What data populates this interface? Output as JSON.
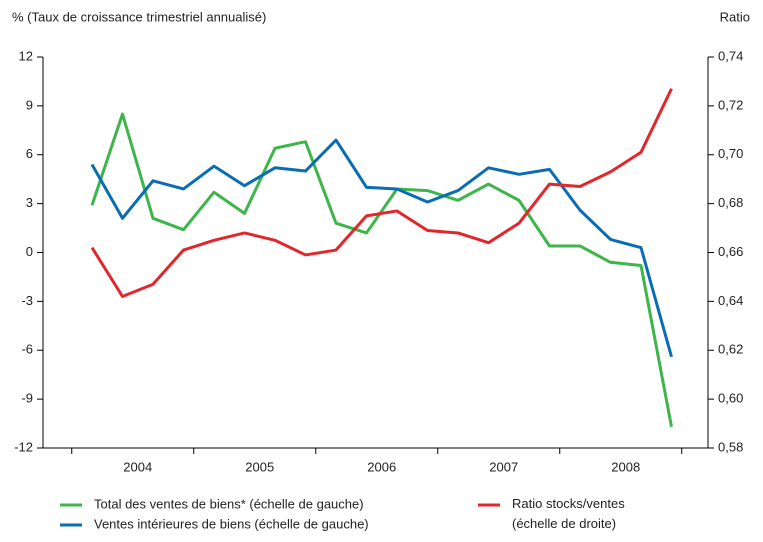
{
  "chart_data": {
    "type": "line",
    "y_axis_label": "% (Taux de croissance trimestriel annualisé)",
    "y2_axis_label": "Ratio",
    "year_labels": [
      "2004",
      "2005",
      "2006",
      "2007",
      "2008"
    ],
    "points_per_year": 4,
    "ylim": [
      -12,
      12
    ],
    "yticks": [
      -12,
      -9,
      -6,
      -3,
      0,
      3,
      6,
      9,
      12
    ],
    "y2lim": [
      0.58,
      0.74
    ],
    "y2ticks": [
      {
        "value": 0.58,
        "label": "0,58"
      },
      {
        "value": 0.6,
        "label": "0,60"
      },
      {
        "value": 0.62,
        "label": "0,62"
      },
      {
        "value": 0.64,
        "label": "0,64"
      },
      {
        "value": 0.66,
        "label": "0,66"
      },
      {
        "value": 0.68,
        "label": "0,68"
      },
      {
        "value": 0.7,
        "label": "0,70"
      },
      {
        "value": 0.72,
        "label": "0,72"
      },
      {
        "value": 0.74,
        "label": "0,74"
      }
    ],
    "series": [
      {
        "name": "Total des ventes de biens* (échelle de gauche)",
        "color": "#3db54a",
        "values": [
          2.9,
          8.5,
          2.1,
          1.4,
          3.7,
          2.4,
          6.4,
          6.8,
          1.8,
          1.2,
          3.9,
          3.8,
          3.2,
          4.2,
          3.2,
          0.4,
          0.4,
          -0.6,
          -0.8,
          -10.7
        ]
      },
      {
        "name": "Ventes intérieures de biens (échelle de gauche)",
        "color": "#0a6db3",
        "values": [
          5.4,
          2.1,
          4.4,
          3.9,
          5.3,
          4.1,
          5.2,
          5.0,
          6.9,
          4.0,
          3.9,
          3.1,
          3.8,
          5.2,
          4.8,
          5.1,
          2.6,
          0.8,
          0.3,
          -6.4
        ]
      },
      {
        "name": "Ratio stocks/ventes (échelle de droite)",
        "color": "#e3262b",
        "axis": "y2",
        "values": [
          0.662,
          0.642,
          0.647,
          0.661,
          0.665,
          0.668,
          0.665,
          0.659,
          0.661,
          0.675,
          0.677,
          0.669,
          0.668,
          0.664,
          0.672,
          0.688,
          0.687,
          0.693,
          0.701,
          0.727
        ]
      }
    ]
  }
}
